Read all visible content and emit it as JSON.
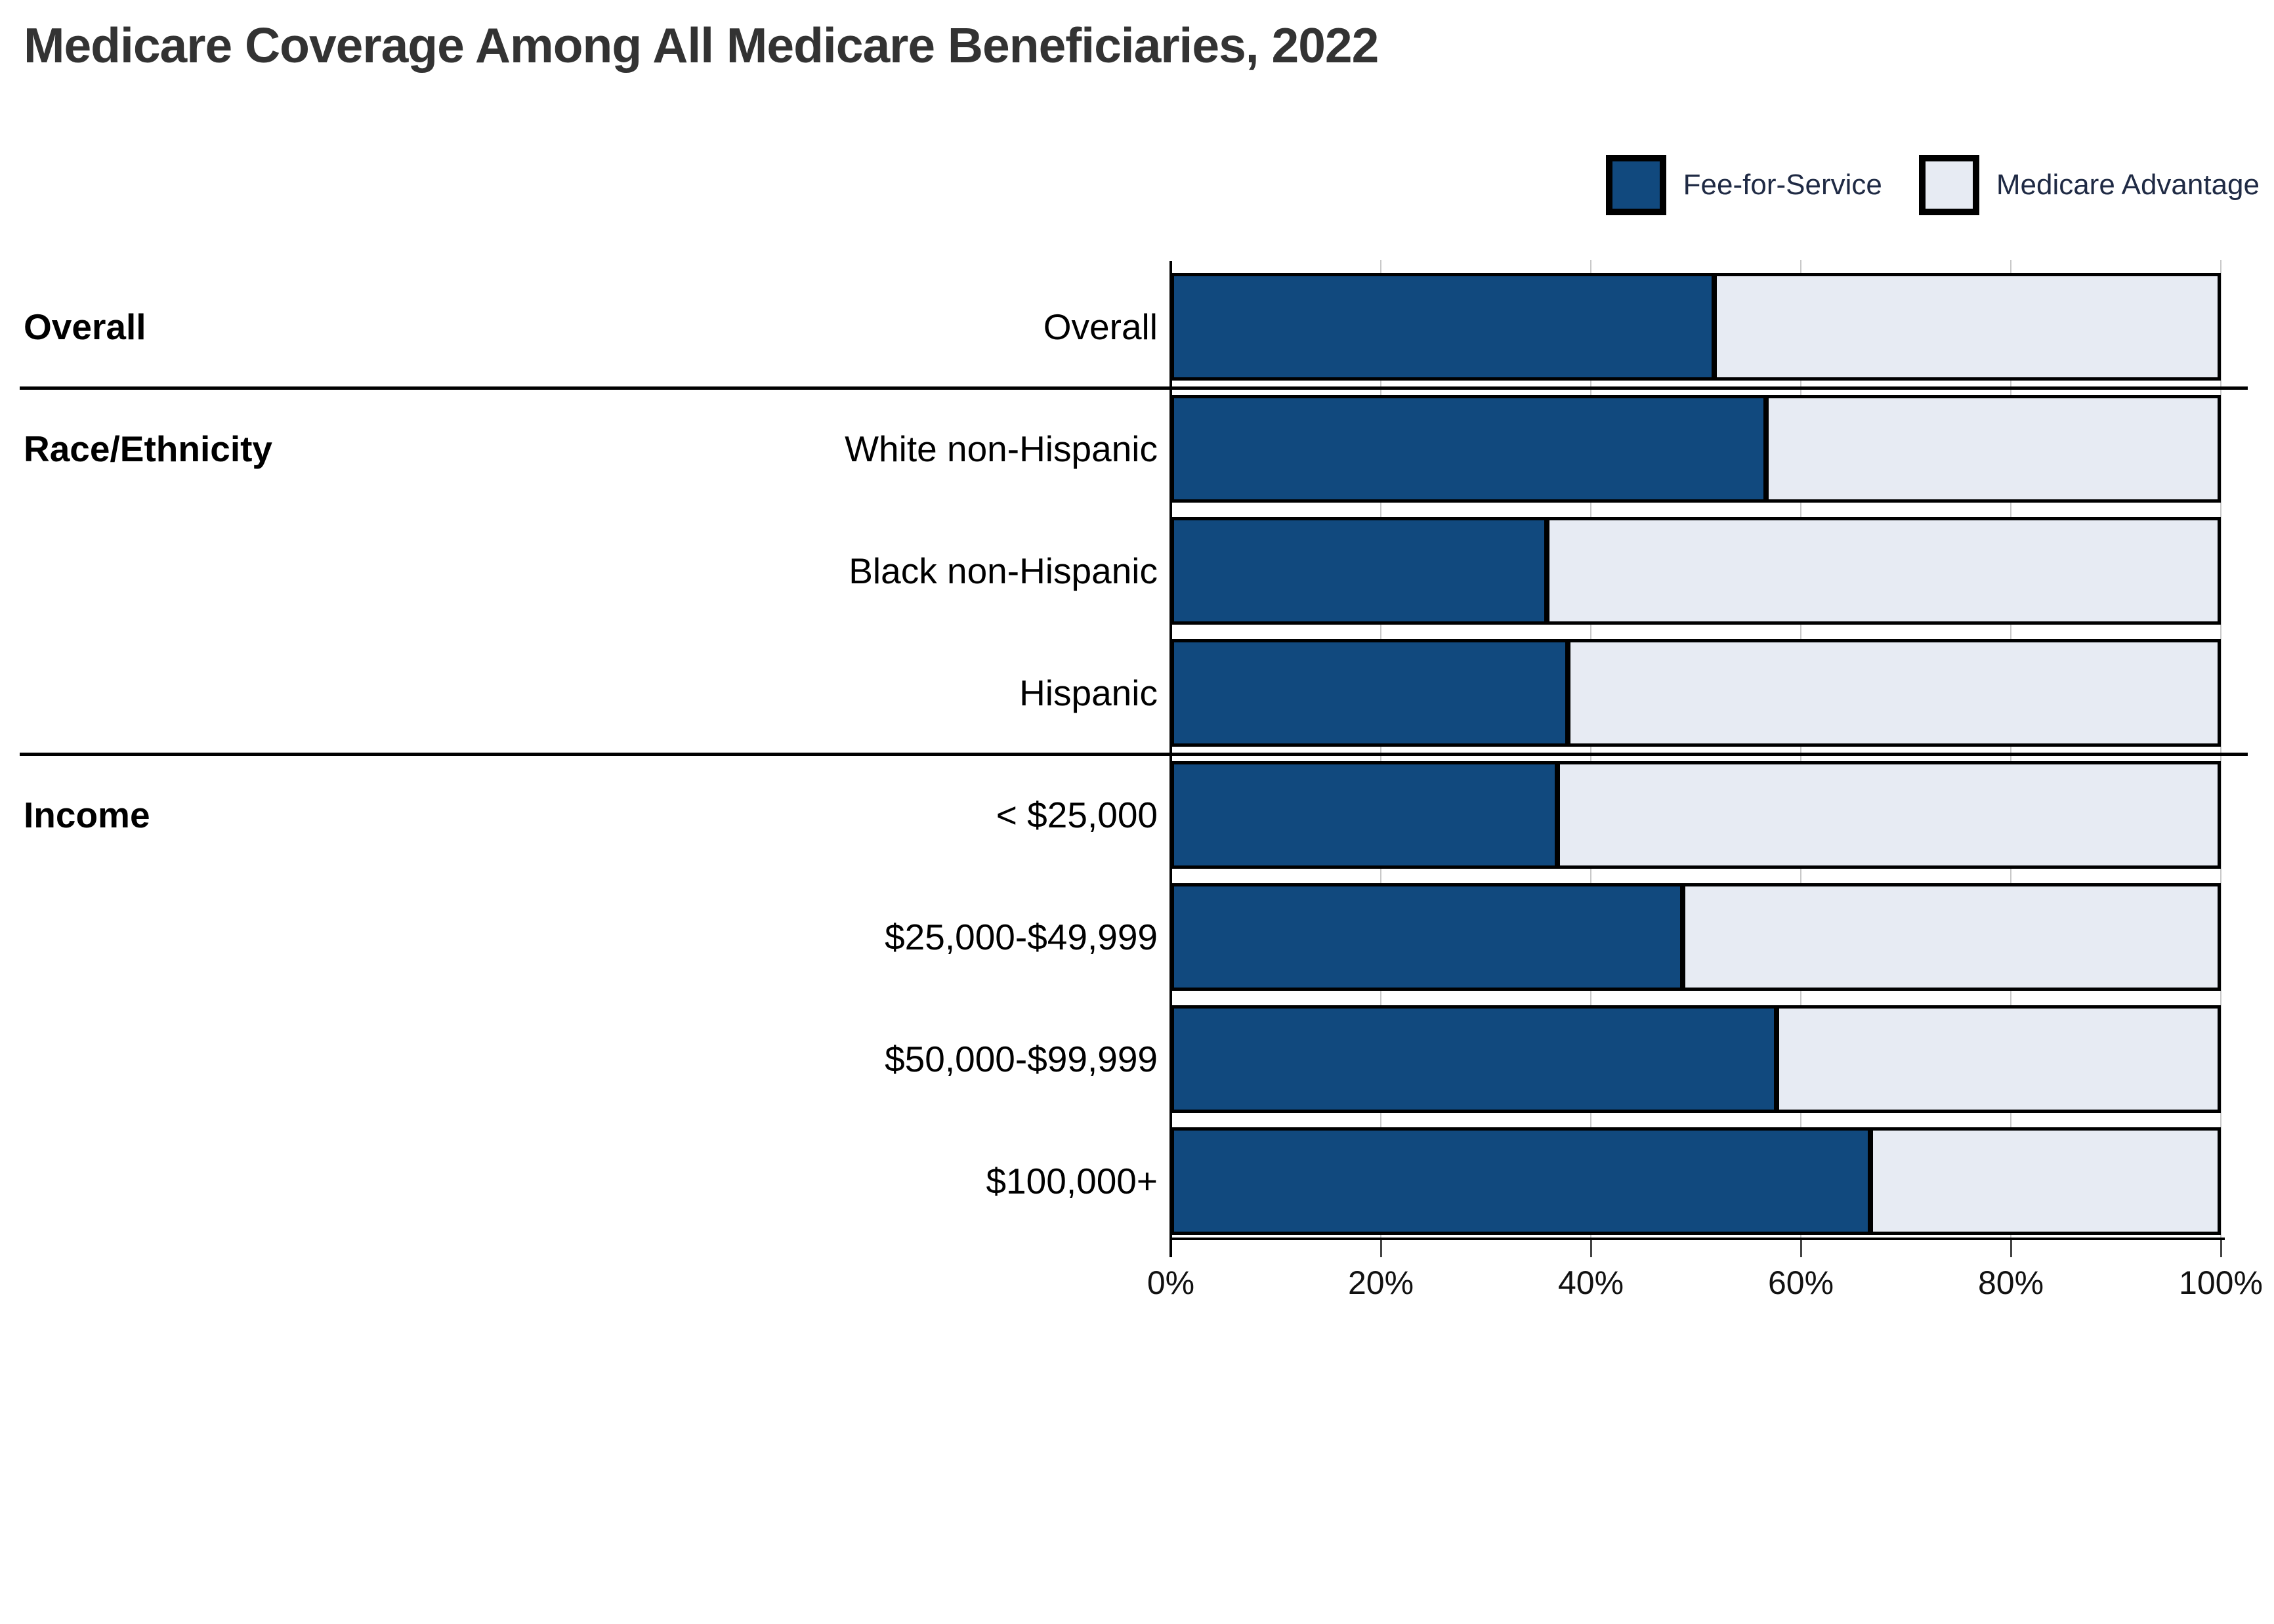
{
  "title": "Medicare Coverage Among All Medicare Beneficiaries, 2022",
  "legend": {
    "items": [
      {
        "label": "Fee-for-Service",
        "color": "#11497E"
      },
      {
        "label": "Medicare Advantage",
        "color": "#E7EBF3"
      }
    ]
  },
  "colors": {
    "fee_for_service": "#11497E",
    "medicare_advantage": "#E7EBF3",
    "bar_border": "#000000",
    "gridline": "#C9C9C9",
    "axis_line": "#000000",
    "divider": "#000000",
    "title_text": "#333333",
    "tick_text": "#111111",
    "label_text": "#000000",
    "legend_text": "#1F2A44",
    "background": "#FFFFFF"
  },
  "chart_data": {
    "type": "bar",
    "orientation": "horizontal",
    "stacked": true,
    "unit": "percent",
    "title": "Medicare Coverage Among All Medicare Beneficiaries, 2022",
    "xlabel": "",
    "ylabel": "",
    "xlim": [
      0,
      100
    ],
    "x_ticks": [
      "0%",
      "20%",
      "40%",
      "60%",
      "80%",
      "100%"
    ],
    "x_tick_values": [
      0,
      20,
      40,
      60,
      80,
      100
    ],
    "grid": true,
    "legend_position": "top-right",
    "categories": [
      "Overall",
      "White non-Hispanic",
      "Black non-Hispanic",
      "Hispanic",
      "< $25,000",
      "$25,000-$49,999",
      "$50,000-$99,999",
      "$100,000+"
    ],
    "series": [
      {
        "name": "Fee-for-Service",
        "values": [
          52,
          57,
          36,
          38,
          37,
          49,
          58,
          67
        ]
      },
      {
        "name": "Medicare Advantage",
        "values": [
          48,
          43,
          64,
          62,
          63,
          51,
          42,
          33
        ]
      }
    ],
    "sections": [
      {
        "label": "Overall",
        "rows": [
          {
            "label": "Overall",
            "fee_for_service": 52,
            "medicare_advantage": 48
          }
        ]
      },
      {
        "label": "Race/Ethnicity",
        "rows": [
          {
            "label": "White non-Hispanic",
            "fee_for_service": 57,
            "medicare_advantage": 43
          },
          {
            "label": "Black non-Hispanic",
            "fee_for_service": 36,
            "medicare_advantage": 64
          },
          {
            "label": "Hispanic",
            "fee_for_service": 38,
            "medicare_advantage": 62
          }
        ]
      },
      {
        "label": "Income",
        "rows": [
          {
            "label": "< $25,000",
            "fee_for_service": 37,
            "medicare_advantage": 63
          },
          {
            "label": "$25,000-$49,999",
            "fee_for_service": 49,
            "medicare_advantage": 51
          },
          {
            "label": "$50,000-$99,999",
            "fee_for_service": 58,
            "medicare_advantage": 42
          },
          {
            "label": "$100,000+",
            "fee_for_service": 67,
            "medicare_advantage": 33
          }
        ]
      }
    ]
  }
}
